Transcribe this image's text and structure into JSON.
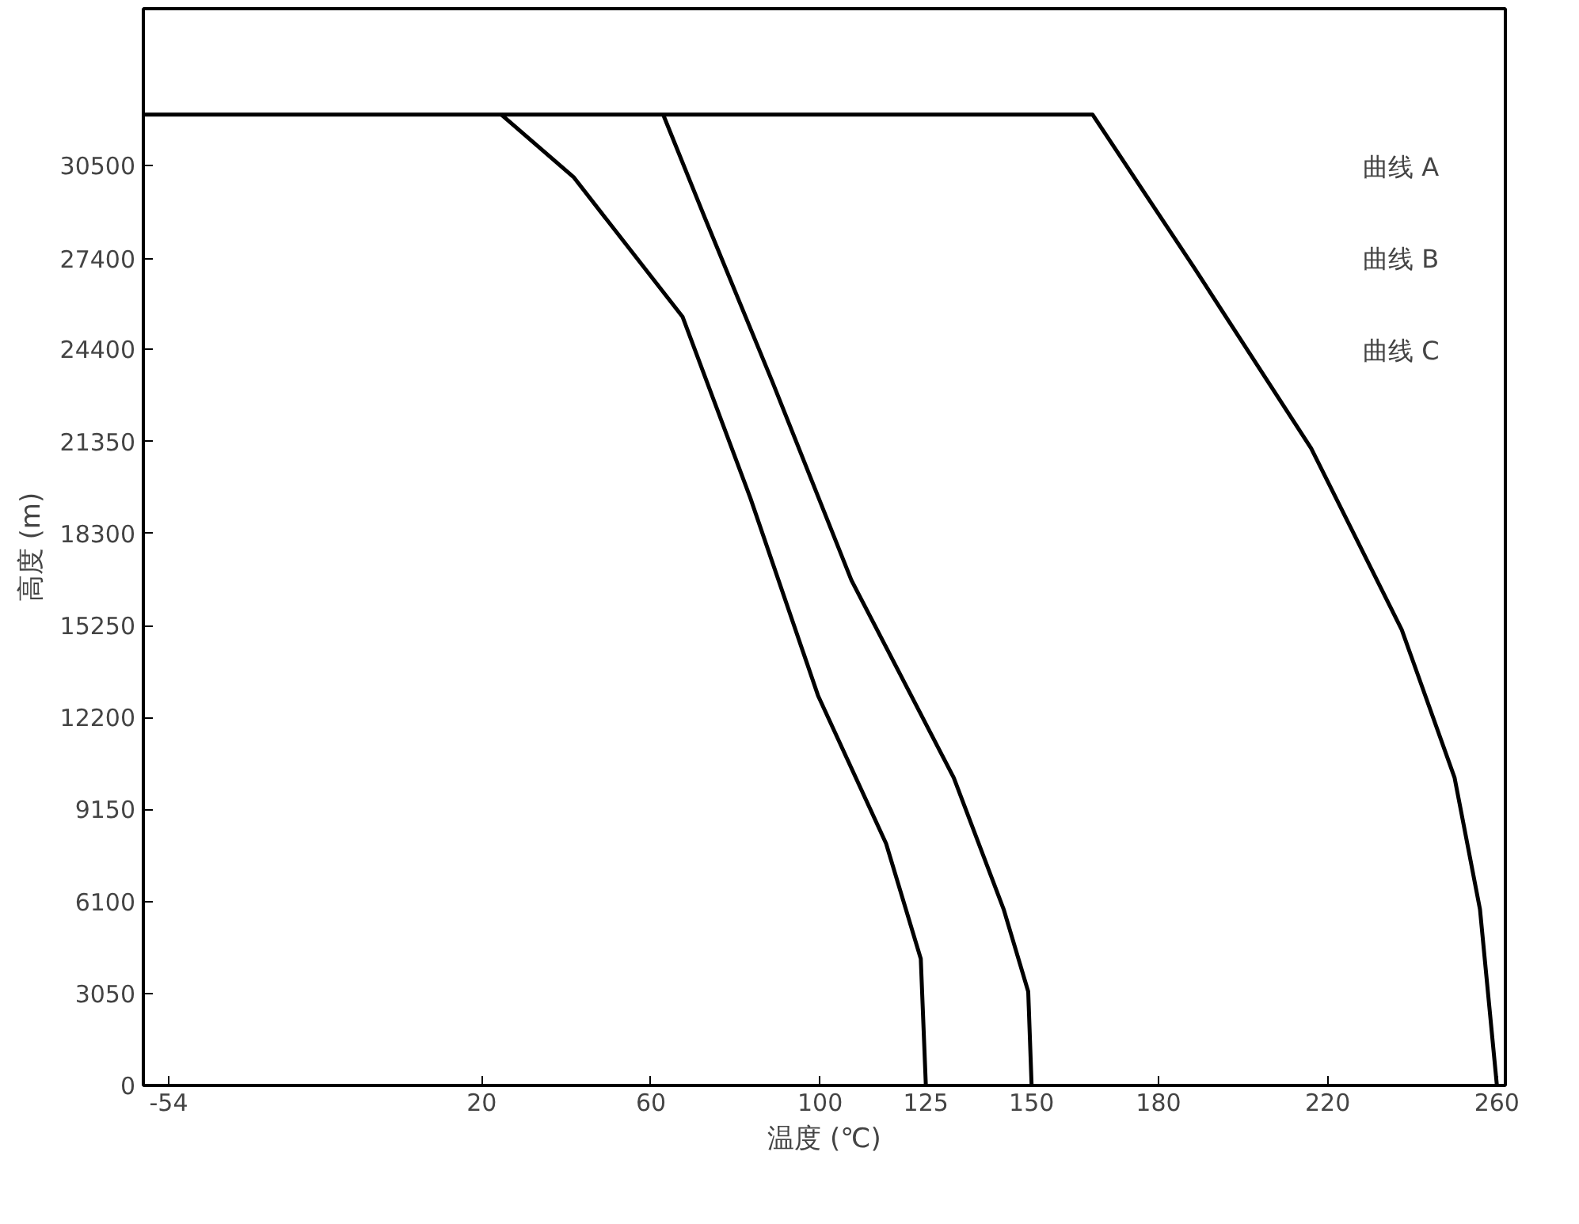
{
  "chart_data": {
    "type": "line",
    "xlabel": "温度 (℃)",
    "ylabel": "高度 (m)",
    "xlim": [
      -60,
      262
    ],
    "ylim": [
      0,
      35700
    ],
    "xticks": [
      -54,
      20,
      60,
      100,
      125,
      150,
      180,
      220,
      260
    ],
    "yticks": [
      0,
      3050,
      6100,
      9150,
      12200,
      15250,
      18300,
      21350,
      24400,
      27400,
      30500
    ],
    "grid": false,
    "marker": "none",
    "line_style": "solid",
    "series": [
      {
        "color": "#000000",
        "x": [
          24.6,
          41.7,
          67.5,
          83.5,
          99.5,
          115.6,
          123.8,
          125
        ],
        "values": [
          32190,
          30120,
          25480,
          19480,
          12930,
          8020,
          4200,
          0
        ]
      },
      {
        "color": "#000000",
        "x": [
          62.9,
          72.8,
          88.8,
          107.4,
          131.6,
          143.4,
          149.2,
          150
        ],
        "values": [
          32190,
          28750,
          23300,
          16750,
          10200,
          5840,
          3110,
          0
        ]
      },
      {
        "color": "#000000",
        "x": [
          -60,
          164.4,
          188.4,
          216.1,
          237.5,
          250,
          256,
          260
        ],
        "values": [
          32190,
          32190,
          27120,
          21120,
          15110,
          10200,
          5840,
          0
        ]
      }
    ],
    "annotations": [
      "曲线 A",
      "曲线 B",
      "曲线 C"
    ]
  }
}
